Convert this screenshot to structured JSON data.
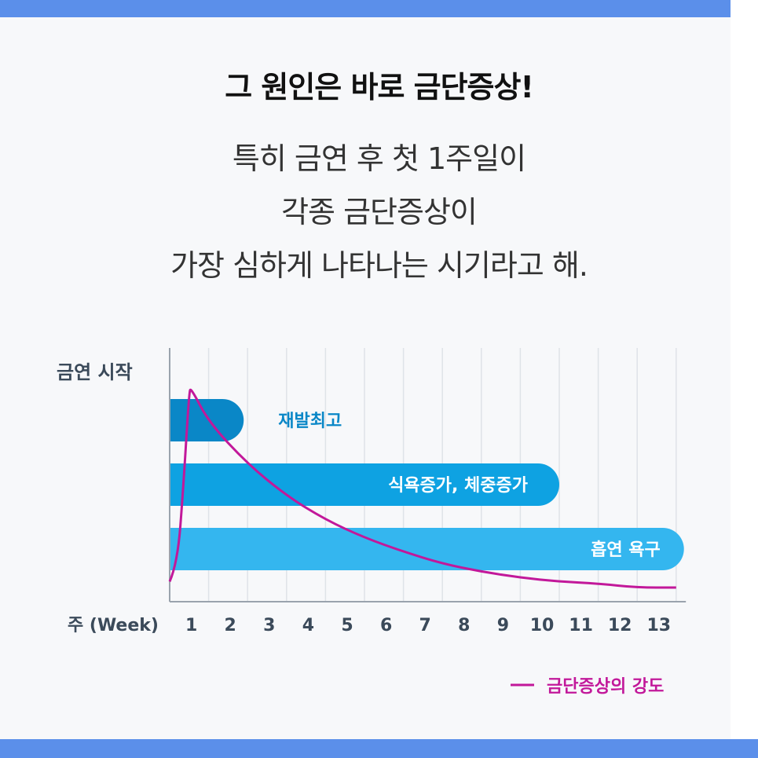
{
  "header": {
    "title": "그 원인은 바로 금단증상!",
    "lines": [
      "특히 금연 후 첫 1주일이",
      "각종 금단증상이",
      "가장 심하게 나타나는 시기라고 해."
    ]
  },
  "colors": {
    "band": "#5b8fea",
    "bar1": "#0a87c7",
    "bar2": "#0ea2e2",
    "bar3": "#34b6ef",
    "curve": "#c2189a",
    "axis_text": "#3b4a5a"
  },
  "chart_data": {
    "type": "bar",
    "orientation": "horizontal",
    "y_axis_label": "금연 시작",
    "xlabel": "주 (Week)",
    "x_ticks": [
      "1",
      "2",
      "3",
      "4",
      "5",
      "6",
      "7",
      "8",
      "9",
      "10",
      "11",
      "12",
      "13"
    ],
    "xlim": [
      0,
      13
    ],
    "grid": true,
    "bars": [
      {
        "label": "재발최고",
        "start_week": 0,
        "end_week": 1.9
      },
      {
        "label": "식욕증가, 체중증가",
        "start_week": 0,
        "end_week": 10
      },
      {
        "label": "흡연 욕구",
        "start_week": 0,
        "end_week": 13.2
      }
    ],
    "series": [
      {
        "name": "금단증상의 강도",
        "x": [
          0,
          0.2,
          0.35,
          0.5,
          0.55,
          1,
          2,
          3,
          4,
          5,
          6,
          7,
          8,
          9,
          10,
          11,
          12,
          13
        ],
        "y": [
          0.03,
          0.12,
          0.5,
          0.98,
          1.0,
          0.83,
          0.62,
          0.46,
          0.34,
          0.25,
          0.18,
          0.12,
          0.08,
          0.05,
          0.03,
          0.02,
          0.0,
          0.0
        ]
      }
    ],
    "legend": {
      "label": "금단증상의 강도",
      "position": "bottom-right"
    }
  }
}
